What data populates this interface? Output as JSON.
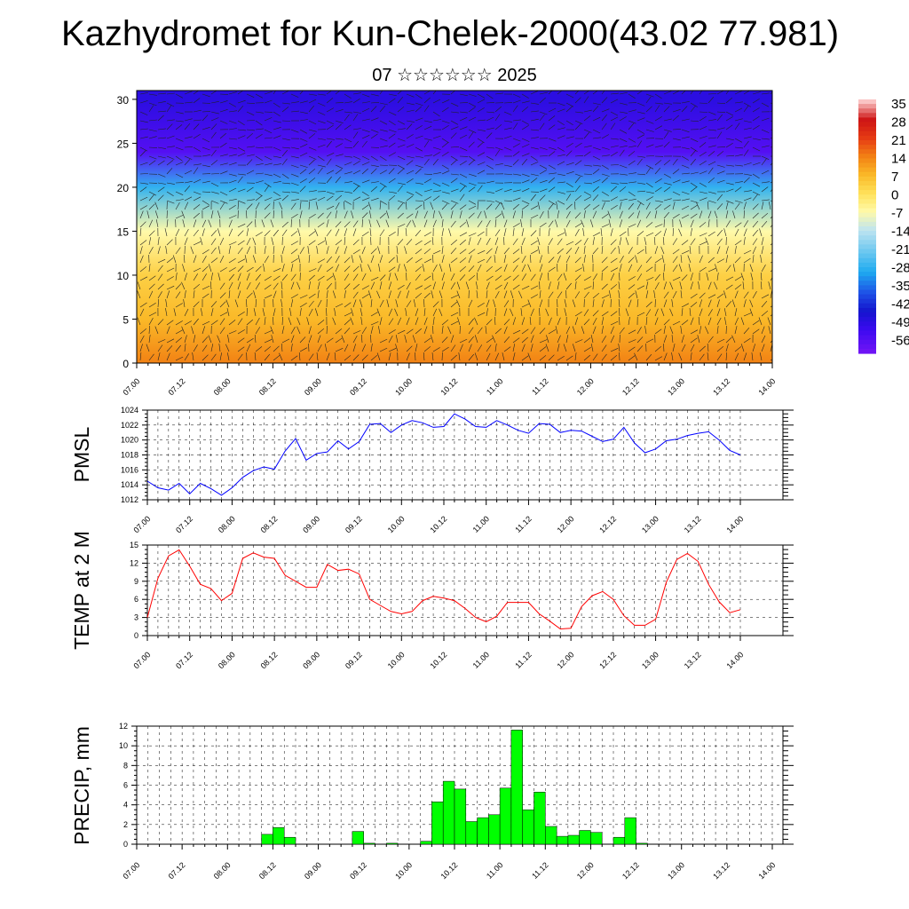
{
  "title": "Kazhydromet for Kun-Chelek-2000(43.02 77.981)",
  "subtitle": "07 ☆☆☆☆☆☆ 2025",
  "colorbar": {
    "labels": [
      "35",
      "28",
      "21",
      "14",
      "7",
      "0",
      "-7",
      "-14",
      "-21",
      "-28",
      "-35",
      "-42",
      "-49",
      "-56"
    ]
  },
  "x_ticks": [
    "07.00",
    "07.12",
    "08.00",
    "08.12",
    "09.00",
    "09.12",
    "10.00",
    "10.12",
    "11.00",
    "11.12",
    "12.00",
    "12.12",
    "13.00",
    "13.12",
    "14.00"
  ],
  "chart_data": [
    {
      "type": "heatmap",
      "title": "07 ☆☆☆☆☆☆ 2025",
      "y_ticks": [
        "0",
        "5",
        "10",
        "15",
        "20",
        "25",
        "30"
      ],
      "ylim": [
        0,
        31
      ],
      "color_levels": [
        35,
        28,
        21,
        14,
        7,
        0,
        -7,
        -14,
        -21,
        -28,
        -35,
        -42,
        -49,
        -56
      ],
      "temperature_band_approx": [
        {
          "height": 0,
          "value": 14
        },
        {
          "height": 5,
          "value": 7
        },
        {
          "height": 10,
          "value": 3
        },
        {
          "height": 15,
          "value": -7
        },
        {
          "height": 20,
          "value": -28
        },
        {
          "height": 24,
          "value": -56
        },
        {
          "height": 30,
          "value": -49
        }
      ]
    },
    {
      "type": "line",
      "ylabel": "PMSL",
      "ylim": [
        1012,
        1024
      ],
      "y_ticks": [
        "1012",
        "1014",
        "1016",
        "1018",
        "1020",
        "1022",
        "1024"
      ],
      "color": "#0000ff",
      "values": [
        1014.5,
        1013.6,
        1013.3,
        1014.2,
        1012.8,
        1014.2,
        1013.5,
        1012.6,
        1013.6,
        1015,
        1015.9,
        1016.4,
        1016.1,
        1018.5,
        1020.2,
        1017.3,
        1018.2,
        1018.4,
        1019.9,
        1018.8,
        1019.8,
        1022.1,
        1022.2,
        1021,
        1022,
        1022.6,
        1022.3,
        1021.7,
        1021.8,
        1023.5,
        1022.8,
        1021.8,
        1021.7,
        1022.6,
        1022,
        1021.3,
        1020.9,
        1022.2,
        1022.1,
        1021,
        1021.3,
        1021.2,
        1020.5,
        1019.8,
        1020.1,
        1021.7,
        1019.6,
        1018.3,
        1018.8,
        1019.9,
        1020.1,
        1020.6,
        1020.9,
        1021.1,
        1020,
        1018.6,
        1018
      ]
    },
    {
      "type": "line",
      "ylabel": "TEMP at 2 M",
      "ylim": [
        0,
        15
      ],
      "y_ticks": [
        "0",
        "3",
        "6",
        "9",
        "12",
        "15"
      ],
      "color": "#ff0000",
      "values": [
        3,
        9.5,
        13.2,
        14.2,
        11.5,
        8.5,
        7.8,
        5.8,
        7,
        12.8,
        13.7,
        13,
        12.8,
        10,
        9,
        8,
        8,
        11.8,
        10.8,
        11,
        10.2,
        6,
        5,
        4,
        3.6,
        4,
        5.8,
        6.5,
        6.2,
        5.8,
        4.5,
        3,
        2.3,
        3.2,
        5.5,
        5.5,
        5.5,
        3.6,
        2.4,
        1.1,
        1.2,
        4.8,
        6.6,
        7.3,
        6,
        3.3,
        1.7,
        1.7,
        2.7,
        8.8,
        12.6,
        13.6,
        12.3,
        8.5,
        5.6,
        3.8,
        4.3
      ]
    },
    {
      "type": "bar",
      "ylabel": "PRECIP, mm",
      "ylim": [
        0,
        12
      ],
      "y_ticks": [
        "0",
        "2",
        "4",
        "6",
        "8",
        "10",
        "12"
      ],
      "color": "#00ff00",
      "values": [
        0,
        0,
        0,
        0,
        0,
        0,
        0,
        0,
        0,
        0,
        0,
        1,
        1.7,
        0.7,
        0,
        0,
        0,
        0,
        0,
        1.3,
        0.1,
        0,
        0.1,
        0,
        0,
        0.3,
        4.3,
        6.4,
        5.6,
        2.3,
        2.7,
        3,
        5.7,
        11.6,
        3.5,
        5.3,
        1.8,
        0.8,
        0.9,
        1.4,
        1.2,
        0,
        0.7,
        2.7,
        0.1,
        0,
        0,
        0,
        0,
        0,
        0,
        0,
        0,
        0,
        0,
        0,
        0
      ]
    }
  ]
}
